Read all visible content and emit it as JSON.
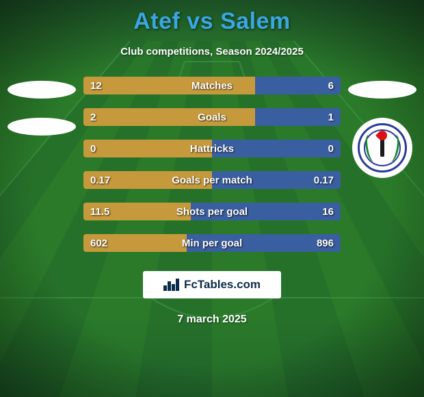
{
  "background": {
    "top_color": "#1f5b2a",
    "mid_color": "#2a7a2a",
    "bottom_color": "#1f5b2a",
    "stripe_colors": [
      "#236a2a",
      "#2a7a2a"
    ],
    "line_color": "#3f9a4a"
  },
  "title": {
    "text": "Atef vs Salem",
    "color": "#3aa7e0",
    "fontsize": 34
  },
  "subtitle": "Club competitions, Season 2024/2025",
  "left_badges": {
    "ellipse1_color": "#fefefe",
    "ellipse2_color": "#fefefe"
  },
  "right_badges": {
    "ellipse_color": "#fefefe"
  },
  "stats": {
    "bar_bg_left": "#9a7b3a",
    "bar_bg_right": "#304a78",
    "fill_left_color": "#c69a3c",
    "fill_right_color": "#3a5fa0",
    "label_color": "#ffffff",
    "rows": [
      {
        "label": "Matches",
        "left": "12",
        "right": "6",
        "left_pct": 66.7,
        "right_pct": 33.3
      },
      {
        "label": "Goals",
        "left": "2",
        "right": "1",
        "left_pct": 66.7,
        "right_pct": 33.3
      },
      {
        "label": "Hattricks",
        "left": "0",
        "right": "0",
        "left_pct": 50,
        "right_pct": 50
      },
      {
        "label": "Goals per match",
        "left": "0.17",
        "right": "0.17",
        "left_pct": 50,
        "right_pct": 50
      },
      {
        "label": "Shots per goal",
        "left": "11.5",
        "right": "16",
        "left_pct": 41.8,
        "right_pct": 58.2
      },
      {
        "label": "Min per goal",
        "left": "602",
        "right": "896",
        "left_pct": 40.2,
        "right_pct": 59.8
      }
    ]
  },
  "footer": {
    "brand": "FcTables.com",
    "date": "7 march 2025"
  }
}
